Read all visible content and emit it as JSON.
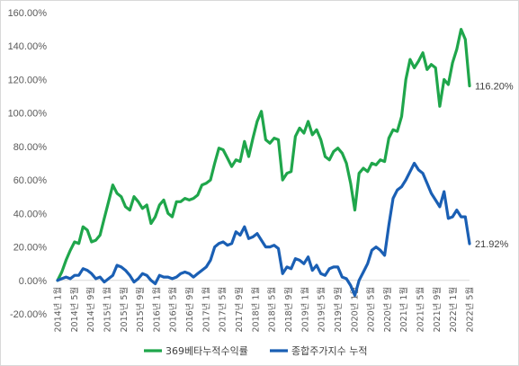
{
  "chart_data": {
    "type": "line",
    "ylim": [
      -20,
      160
    ],
    "y_ticks": [
      {
        "value": -20,
        "label": "-20.00%"
      },
      {
        "value": 0,
        "label": "0.00%"
      },
      {
        "value": 20,
        "label": "20.00%"
      },
      {
        "value": 40,
        "label": "40.00%"
      },
      {
        "value": 60,
        "label": "60.00%"
      },
      {
        "value": 80,
        "label": "80.00%"
      },
      {
        "value": 100,
        "label": "100.00%"
      },
      {
        "value": 120,
        "label": "120.00%"
      },
      {
        "value": 140,
        "label": "140.00%"
      },
      {
        "value": 160,
        "label": "160.00%"
      }
    ],
    "x_tick_labels": [
      "2014년 1월",
      "2014년 5월",
      "2014년 9월",
      "2015년 1월",
      "2015년 5월",
      "2015년 9월",
      "2016년 1월",
      "2016년 5월",
      "2016년 9월",
      "2017년 1월",
      "2017년 5월",
      "2017년 9월",
      "2018년 1월",
      "2018년 5월",
      "2018년 9월",
      "2019년 1월",
      "2019년 5월",
      "2019년 9월",
      "2020년 1월",
      "2020년 5월",
      "2020년 9월",
      "2021년 1월",
      "2021년 5월",
      "2021년 9월",
      "2022년 1월",
      "2022년 5월"
    ],
    "grid": false,
    "legend_position": "bottom",
    "series": [
      {
        "name": "369베타누적수익률",
        "color": "#1fa64b",
        "end_label": "116.20%",
        "values": [
          0,
          5,
          12,
          18,
          23,
          22,
          32,
          30,
          23,
          24,
          27,
          37,
          47,
          57,
          52,
          50,
          44,
          42,
          50,
          47,
          43,
          45,
          34,
          38,
          45,
          48,
          40,
          38,
          47,
          47,
          49,
          48,
          49,
          51,
          57,
          58,
          60,
          70,
          79,
          78,
          73,
          68,
          72,
          71,
          83,
          74,
          85,
          95,
          101,
          84,
          82,
          85,
          84,
          60,
          64,
          65,
          86,
          91,
          88,
          95,
          87,
          90,
          84,
          74,
          72,
          77,
          79,
          76,
          70,
          58,
          42,
          64,
          67,
          65,
          70,
          69,
          72,
          71,
          85,
          90,
          89,
          98,
          120,
          132,
          127,
          131,
          136,
          126,
          129,
          127,
          104,
          120,
          117,
          130,
          138,
          150,
          144,
          116.2
        ]
      },
      {
        "name": "종합주가지수 누적",
        "color": "#1a5fb4",
        "end_label": "21.92%",
        "values": [
          0,
          1,
          2,
          1,
          3,
          3,
          7,
          6,
          4,
          1,
          2,
          -1,
          1,
          3,
          9,
          8,
          6,
          3,
          -1,
          1,
          4,
          3,
          0,
          -2,
          3,
          2,
          2,
          1,
          2,
          4,
          5,
          4,
          2,
          4,
          6,
          8,
          12,
          20,
          22,
          23,
          21,
          22,
          29,
          27,
          32,
          25,
          26,
          28,
          24,
          20,
          20,
          21,
          19,
          4,
          8,
          7,
          13,
          12,
          10,
          14,
          6,
          9,
          4,
          3,
          7,
          8,
          8,
          2,
          1,
          -3,
          -9,
          0,
          5,
          10,
          18,
          20,
          18,
          15,
          33,
          49,
          54,
          56,
          60,
          65,
          70,
          66,
          64,
          58,
          52,
          48,
          44,
          53,
          37,
          38,
          42,
          38,
          38,
          21.92
        ]
      }
    ]
  }
}
